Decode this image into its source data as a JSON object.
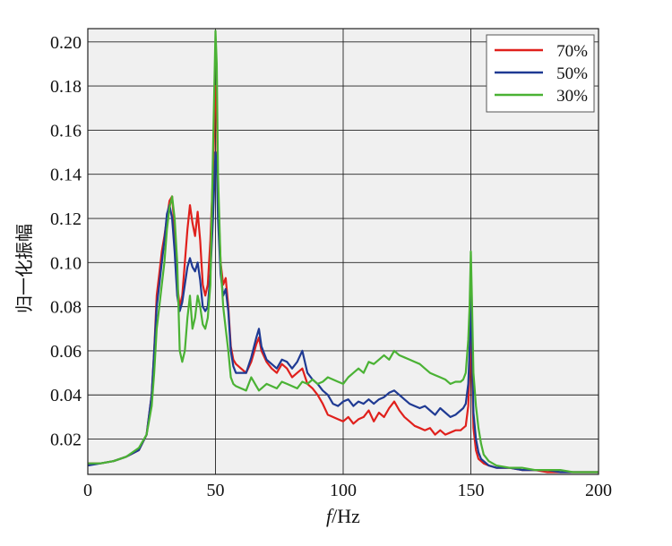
{
  "chart_data": {
    "type": "line",
    "xlabel_italic": "f",
    "xlabel_unit": "/Hz",
    "ylabel": "归一化振幅",
    "xlim": [
      0,
      200
    ],
    "ylim": [
      0.004,
      0.206
    ],
    "x_ticks": [
      "0",
      "50",
      "100",
      "150",
      "200"
    ],
    "x_tick_values": [
      0,
      50,
      100,
      150,
      200
    ],
    "y_ticks": [
      "0.02",
      "0.04",
      "0.06",
      "0.08",
      "0.10",
      "0.12",
      "0.14",
      "0.16",
      "0.18",
      "0.20"
    ],
    "y_tick_values": [
      0.02,
      0.04,
      0.06,
      0.08,
      0.1,
      0.12,
      0.14,
      0.16,
      0.18,
      0.2
    ],
    "grid": true,
    "legend_position": "top-right",
    "series": [
      {
        "name": "70%",
        "color": "#e0201c",
        "x": [
          0,
          5,
          10,
          15,
          20,
          23,
          25,
          26,
          27,
          28,
          29,
          30,
          31,
          32,
          33,
          34,
          35,
          36,
          37,
          38,
          39,
          40,
          41,
          42,
          43,
          44,
          45,
          46,
          47,
          48,
          49,
          50,
          50.5,
          51,
          52,
          53,
          54,
          55,
          56,
          57,
          58,
          60,
          62,
          64,
          66,
          67,
          68,
          70,
          72,
          74,
          76,
          78,
          80,
          82,
          84,
          86,
          88,
          90,
          92,
          94,
          96,
          98,
          100,
          102,
          104,
          106,
          108,
          110,
          112,
          114,
          116,
          118,
          120,
          122,
          124,
          126,
          128,
          130,
          132,
          134,
          136,
          138,
          140,
          142,
          144,
          146,
          147,
          148,
          149,
          149.5,
          150,
          150.5,
          151,
          152,
          153,
          154,
          155,
          157,
          160,
          165,
          170,
          175,
          180,
          185,
          190,
          195,
          200
        ],
        "y": [
          0.009,
          0.009,
          0.01,
          0.012,
          0.015,
          0.022,
          0.04,
          0.06,
          0.085,
          0.095,
          0.105,
          0.112,
          0.12,
          0.128,
          0.13,
          0.115,
          0.09,
          0.08,
          0.085,
          0.1,
          0.115,
          0.126,
          0.118,
          0.112,
          0.123,
          0.11,
          0.09,
          0.085,
          0.09,
          0.11,
          0.14,
          0.18,
          0.17,
          0.13,
          0.1,
          0.09,
          0.093,
          0.08,
          0.062,
          0.056,
          0.054,
          0.052,
          0.05,
          0.055,
          0.063,
          0.066,
          0.06,
          0.055,
          0.052,
          0.05,
          0.054,
          0.052,
          0.048,
          0.05,
          0.052,
          0.045,
          0.043,
          0.04,
          0.036,
          0.031,
          0.03,
          0.029,
          0.028,
          0.03,
          0.027,
          0.029,
          0.03,
          0.033,
          0.028,
          0.032,
          0.03,
          0.034,
          0.037,
          0.033,
          0.03,
          0.028,
          0.026,
          0.025,
          0.024,
          0.025,
          0.022,
          0.024,
          0.022,
          0.023,
          0.024,
          0.024,
          0.025,
          0.026,
          0.035,
          0.05,
          0.085,
          0.05,
          0.025,
          0.015,
          0.011,
          0.01,
          0.009,
          0.008,
          0.007,
          0.007,
          0.006,
          0.006,
          0.005,
          0.005,
          0.005,
          0.005,
          0.005
        ]
      },
      {
        "name": "50%",
        "color": "#1f3a93",
        "x": [
          0,
          5,
          10,
          15,
          20,
          23,
          25,
          26,
          27,
          28,
          29,
          30,
          31,
          32,
          33,
          34,
          35,
          36,
          37,
          38,
          39,
          40,
          41,
          42,
          43,
          44,
          45,
          46,
          47,
          48,
          49,
          50,
          50.5,
          51,
          52,
          53,
          54,
          55,
          56,
          57,
          58,
          60,
          62,
          64,
          66,
          67,
          68,
          70,
          72,
          74,
          76,
          78,
          80,
          82,
          84,
          86,
          88,
          90,
          92,
          94,
          96,
          98,
          100,
          102,
          104,
          106,
          108,
          110,
          112,
          114,
          116,
          118,
          120,
          122,
          124,
          126,
          128,
          130,
          132,
          134,
          136,
          138,
          140,
          142,
          144,
          146,
          147,
          148,
          149,
          149.5,
          150,
          150.5,
          151,
          152,
          153,
          154,
          155,
          157,
          160,
          165,
          170,
          175,
          180,
          185,
          190,
          195,
          200
        ],
        "y": [
          0.008,
          0.009,
          0.01,
          0.012,
          0.015,
          0.022,
          0.04,
          0.06,
          0.08,
          0.09,
          0.1,
          0.11,
          0.122,
          0.126,
          0.12,
          0.105,
          0.085,
          0.078,
          0.082,
          0.09,
          0.098,
          0.102,
          0.098,
          0.096,
          0.1,
          0.092,
          0.08,
          0.078,
          0.08,
          0.095,
          0.12,
          0.15,
          0.145,
          0.12,
          0.095,
          0.085,
          0.088,
          0.078,
          0.06,
          0.053,
          0.05,
          0.05,
          0.05,
          0.057,
          0.066,
          0.07,
          0.062,
          0.056,
          0.054,
          0.052,
          0.056,
          0.055,
          0.052,
          0.055,
          0.06,
          0.05,
          0.047,
          0.045,
          0.042,
          0.04,
          0.036,
          0.035,
          0.037,
          0.038,
          0.035,
          0.037,
          0.036,
          0.038,
          0.036,
          0.038,
          0.039,
          0.041,
          0.042,
          0.04,
          0.038,
          0.036,
          0.035,
          0.034,
          0.035,
          0.033,
          0.031,
          0.034,
          0.032,
          0.03,
          0.031,
          0.033,
          0.034,
          0.036,
          0.045,
          0.06,
          0.09,
          0.06,
          0.032,
          0.02,
          0.014,
          0.011,
          0.01,
          0.008,
          0.007,
          0.007,
          0.006,
          0.006,
          0.006,
          0.005,
          0.005,
          0.005,
          0.005
        ]
      },
      {
        "name": "30%",
        "color": "#4ab234",
        "x": [
          0,
          5,
          10,
          15,
          20,
          23,
          25,
          26,
          27,
          28,
          29,
          30,
          31,
          32,
          33,
          34,
          35,
          36,
          37,
          38,
          39,
          40,
          41,
          42,
          43,
          44,
          45,
          46,
          47,
          48,
          49,
          50,
          50.5,
          51,
          52,
          53,
          54,
          55,
          56,
          57,
          58,
          60,
          62,
          64,
          66,
          67,
          68,
          70,
          72,
          74,
          76,
          78,
          80,
          82,
          84,
          86,
          88,
          90,
          92,
          94,
          96,
          98,
          100,
          102,
          104,
          106,
          108,
          110,
          112,
          114,
          116,
          118,
          120,
          122,
          124,
          126,
          128,
          130,
          132,
          134,
          136,
          138,
          140,
          142,
          144,
          146,
          147,
          148,
          149,
          149.5,
          150,
          150.5,
          151,
          152,
          153,
          154,
          155,
          157,
          160,
          165,
          170,
          175,
          180,
          185,
          190,
          195,
          200
        ],
        "y": [
          0.009,
          0.009,
          0.01,
          0.012,
          0.016,
          0.022,
          0.035,
          0.05,
          0.07,
          0.08,
          0.09,
          0.1,
          0.115,
          0.125,
          0.13,
          0.12,
          0.1,
          0.06,
          0.055,
          0.06,
          0.075,
          0.085,
          0.07,
          0.075,
          0.085,
          0.08,
          0.072,
          0.07,
          0.075,
          0.09,
          0.15,
          0.205,
          0.19,
          0.14,
          0.1,
          0.08,
          0.07,
          0.06,
          0.048,
          0.045,
          0.044,
          0.043,
          0.042,
          0.048,
          0.044,
          0.042,
          0.043,
          0.045,
          0.044,
          0.043,
          0.046,
          0.045,
          0.044,
          0.043,
          0.046,
          0.045,
          0.047,
          0.045,
          0.046,
          0.048,
          0.047,
          0.046,
          0.045,
          0.048,
          0.05,
          0.052,
          0.05,
          0.055,
          0.054,
          0.056,
          0.058,
          0.056,
          0.06,
          0.058,
          0.057,
          0.056,
          0.055,
          0.054,
          0.052,
          0.05,
          0.049,
          0.048,
          0.047,
          0.045,
          0.046,
          0.046,
          0.047,
          0.05,
          0.065,
          0.08,
          0.105,
          0.08,
          0.05,
          0.035,
          0.025,
          0.018,
          0.013,
          0.01,
          0.008,
          0.007,
          0.007,
          0.006,
          0.006,
          0.006,
          0.005,
          0.005,
          0.005
        ]
      }
    ]
  }
}
